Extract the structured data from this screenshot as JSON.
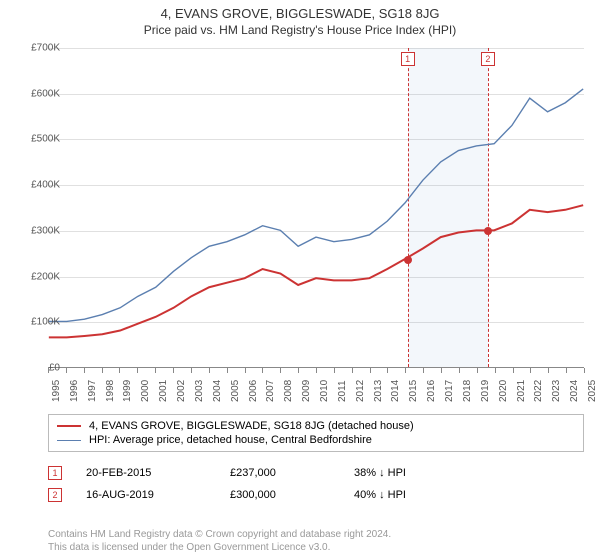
{
  "title": "4, EVANS GROVE, BIGGLESWADE, SG18 8JG",
  "subtitle": "Price paid vs. HM Land Registry's House Price Index (HPI)",
  "chart": {
    "type": "line",
    "background_color": "#ffffff",
    "grid_color": "#e0e0e0",
    "axis_color": "#888888",
    "ylim": [
      0,
      700000
    ],
    "ytick_step": 100000,
    "ytick_labels": [
      "£0",
      "£100K",
      "£200K",
      "£300K",
      "£400K",
      "£500K",
      "£600K",
      "£700K"
    ],
    "xlim": [
      1995,
      2025
    ],
    "xticks": [
      1995,
      1996,
      1997,
      1998,
      1999,
      2000,
      2001,
      2002,
      2003,
      2004,
      2005,
      2006,
      2007,
      2008,
      2009,
      2010,
      2011,
      2012,
      2013,
      2014,
      2015,
      2016,
      2017,
      2018,
      2019,
      2020,
      2021,
      2022,
      2023,
      2024,
      2025
    ],
    "series": [
      {
        "name": "price_paid",
        "color": "#cc3333",
        "width": 2,
        "points": [
          [
            1995,
            65000
          ],
          [
            1996,
            65000
          ],
          [
            1997,
            68000
          ],
          [
            1998,
            72000
          ],
          [
            1999,
            80000
          ],
          [
            2000,
            95000
          ],
          [
            2001,
            110000
          ],
          [
            2002,
            130000
          ],
          [
            2003,
            155000
          ],
          [
            2004,
            175000
          ],
          [
            2005,
            185000
          ],
          [
            2006,
            195000
          ],
          [
            2007,
            215000
          ],
          [
            2008,
            205000
          ],
          [
            2009,
            180000
          ],
          [
            2010,
            195000
          ],
          [
            2011,
            190000
          ],
          [
            2012,
            190000
          ],
          [
            2013,
            195000
          ],
          [
            2014,
            215000
          ],
          [
            2015,
            237000
          ],
          [
            2016,
            260000
          ],
          [
            2017,
            285000
          ],
          [
            2018,
            295000
          ],
          [
            2019,
            300000
          ],
          [
            2020,
            300000
          ],
          [
            2021,
            315000
          ],
          [
            2022,
            345000
          ],
          [
            2023,
            340000
          ],
          [
            2024,
            345000
          ],
          [
            2025,
            355000
          ]
        ]
      },
      {
        "name": "hpi",
        "color": "#5b7fb0",
        "width": 1.4,
        "points": [
          [
            1995,
            100000
          ],
          [
            1996,
            100000
          ],
          [
            1997,
            105000
          ],
          [
            1998,
            115000
          ],
          [
            1999,
            130000
          ],
          [
            2000,
            155000
          ],
          [
            2001,
            175000
          ],
          [
            2002,
            210000
          ],
          [
            2003,
            240000
          ],
          [
            2004,
            265000
          ],
          [
            2005,
            275000
          ],
          [
            2006,
            290000
          ],
          [
            2007,
            310000
          ],
          [
            2008,
            300000
          ],
          [
            2009,
            265000
          ],
          [
            2010,
            285000
          ],
          [
            2011,
            275000
          ],
          [
            2012,
            280000
          ],
          [
            2013,
            290000
          ],
          [
            2014,
            320000
          ],
          [
            2015,
            360000
          ],
          [
            2016,
            410000
          ],
          [
            2017,
            450000
          ],
          [
            2018,
            475000
          ],
          [
            2019,
            485000
          ],
          [
            2020,
            490000
          ],
          [
            2021,
            530000
          ],
          [
            2022,
            590000
          ],
          [
            2023,
            560000
          ],
          [
            2024,
            580000
          ],
          [
            2025,
            610000
          ]
        ]
      }
    ],
    "shaded_region": {
      "from": 2015.13,
      "to": 2019.62,
      "color": "rgba(100,150,200,0.08)"
    },
    "markers": [
      {
        "id": "1",
        "x": 2015.13,
        "y": 237000,
        "color": "#cc3333"
      },
      {
        "id": "2",
        "x": 2019.62,
        "y": 300000,
        "color": "#cc3333"
      }
    ],
    "label_fontsize": 10,
    "title_fontsize": 13
  },
  "legend": {
    "border_color": "#bbbbbb",
    "items": [
      {
        "label": "4, EVANS GROVE, BIGGLESWADE, SG18 8JG (detached house)",
        "color": "#cc3333",
        "weight": 2
      },
      {
        "label": "HPI: Average price, detached house, Central Bedfordshire",
        "color": "#5b7fb0",
        "weight": 1.4
      }
    ]
  },
  "transactions": [
    {
      "id": "1",
      "date": "20-FEB-2015",
      "price": "£237,000",
      "delta": "38% ↓ HPI"
    },
    {
      "id": "2",
      "date": "16-AUG-2019",
      "price": "£300,000",
      "delta": "40% ↓ HPI"
    }
  ],
  "footer_line1": "Contains HM Land Registry data © Crown copyright and database right 2024.",
  "footer_line2": "This data is licensed under the Open Government Licence v3.0."
}
